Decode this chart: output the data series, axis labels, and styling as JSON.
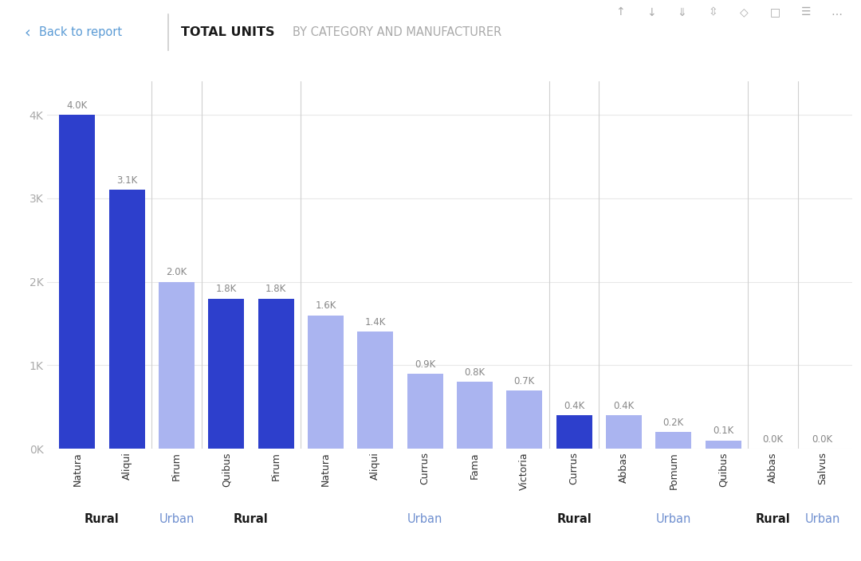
{
  "bars": [
    {
      "label": "Natura",
      "value": 4000,
      "category": "Rural",
      "color": "#2d3fcc"
    },
    {
      "label": "Aliqui",
      "value": 3100,
      "category": "Rural",
      "color": "#2d3fcc"
    },
    {
      "label": "Pirum",
      "value": 2000,
      "category": "Urban",
      "color": "#aab4f0"
    },
    {
      "label": "Quibus",
      "value": 1800,
      "category": "Rural",
      "color": "#2d3fcc"
    },
    {
      "label": "Pirum",
      "value": 1800,
      "category": "Rural",
      "color": "#2d3fcc"
    },
    {
      "label": "Natura",
      "value": 1600,
      "category": "Urban",
      "color": "#aab4f0"
    },
    {
      "label": "Aliqui",
      "value": 1400,
      "category": "Urban",
      "color": "#aab4f0"
    },
    {
      "label": "Currus",
      "value": 900,
      "category": "Urban",
      "color": "#aab4f0"
    },
    {
      "label": "Fama",
      "value": 800,
      "category": "Urban",
      "color": "#aab4f0"
    },
    {
      "label": "Victoria",
      "value": 700,
      "category": "Urban",
      "color": "#aab4f0"
    },
    {
      "label": "Currus",
      "value": 400,
      "category": "Rural",
      "color": "#2d3fcc"
    },
    {
      "label": "Abbas",
      "value": 400,
      "category": "Urban",
      "color": "#aab4f0"
    },
    {
      "label": "Pomum",
      "value": 200,
      "category": "Urban",
      "color": "#aab4f0"
    },
    {
      "label": "Quibus",
      "value": 100,
      "category": "Urban",
      "color": "#aab4f0"
    },
    {
      "label": "Abbas",
      "value": 0,
      "category": "Rural",
      "color": "#2d3fcc"
    },
    {
      "label": "Salvus",
      "value": 0,
      "category": "Urban",
      "color": "#aab4f0"
    }
  ],
  "groups": [
    {
      "text": "Rural",
      "indices": [
        0,
        1
      ],
      "bold": true,
      "color": "#1a1a1a"
    },
    {
      "text": "Urban",
      "indices": [
        2
      ],
      "bold": false,
      "color": "#7090d0"
    },
    {
      "text": "Rural",
      "indices": [
        3,
        4
      ],
      "bold": true,
      "color": "#1a1a1a"
    },
    {
      "text": "Urban",
      "indices": [
        5,
        6,
        7,
        8,
        9
      ],
      "bold": false,
      "color": "#7090d0"
    },
    {
      "text": "Rural",
      "indices": [
        10
      ],
      "bold": true,
      "color": "#1a1a1a"
    },
    {
      "text": "Urban",
      "indices": [
        11,
        12,
        13
      ],
      "bold": false,
      "color": "#7090d0"
    },
    {
      "text": "Rural",
      "indices": [
        14
      ],
      "bold": true,
      "color": "#1a1a1a"
    },
    {
      "text": "Urban",
      "indices": [
        15
      ],
      "bold": false,
      "color": "#7090d0"
    }
  ],
  "yticks": [
    0,
    1000,
    2000,
    3000,
    4000
  ],
  "ytick_labels": [
    "0K",
    "1K",
    "2K",
    "3K",
    "4K"
  ],
  "ylim": [
    0,
    4400
  ],
  "bg_color": "#ffffff",
  "rural_color": "#2d3fcc",
  "urban_color": "#aab4f0",
  "axis_label_color": "#aaaaaa",
  "bar_value_color": "#888888",
  "grid_color": "#e8e8e8",
  "title": "TOTAL UNITS",
  "subtitle": "BY CATEGORY AND MANUFACTURER",
  "back_label": "Back to report"
}
